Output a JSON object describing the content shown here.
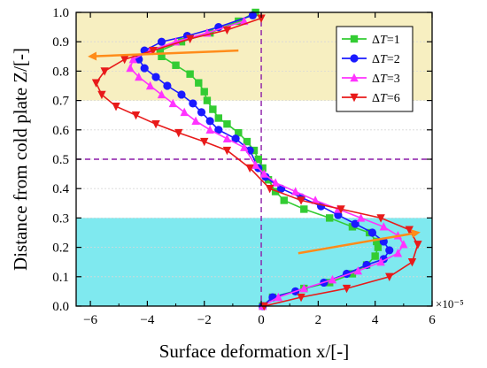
{
  "chart_data": {
    "type": "line",
    "xlabel": "Surface deformation x/[-]",
    "ylabel": "Distance from cold plate Z/[-]",
    "x_exponent_label": "×10⁻⁵",
    "xlim": [
      -6.5,
      6
    ],
    "ylim": [
      0,
      1.0
    ],
    "xticks": [
      -6,
      -4,
      -2,
      0,
      2,
      4,
      6
    ],
    "yticks": [
      0.0,
      0.1,
      0.2,
      0.3,
      0.4,
      0.5,
      0.6,
      0.7,
      0.8,
      0.9,
      1.0
    ],
    "xtick_labels": [
      "−6",
      "−4",
      "−2",
      "0",
      "2",
      "4",
      "6"
    ],
    "ytick_labels": [
      "0.0",
      "0.1",
      "0.2",
      "0.3",
      "0.4",
      "0.5",
      "0.6",
      "0.7",
      "0.8",
      "0.9",
      "1.0"
    ],
    "grid": false,
    "legend_position": "top-right",
    "bands": [
      {
        "y0": 0.7,
        "y1": 1.0,
        "color": "#f7efc1"
      },
      {
        "y0": 0.0,
        "y1": 0.3,
        "color": "#7fe9ef"
      }
    ],
    "reference_lines": [
      {
        "orientation": "vertical",
        "x": 0,
        "color": "#8b1aa8"
      },
      {
        "orientation": "horizontal",
        "y": 0.5,
        "color": "#8b1aa8"
      }
    ],
    "arrows": [
      {
        "from": [
          -0.8,
          0.87
        ],
        "to": [
          -6.0,
          0.85
        ],
        "color": "#ff8c1a"
      },
      {
        "from": [
          1.3,
          0.18
        ],
        "to": [
          5.5,
          0.25
        ],
        "color": "#ff8c1a"
      }
    ],
    "series": [
      {
        "name": "ΔT=1",
        "legend_prefix": "Δ",
        "legend_var": "T",
        "legend_suffix": "=1",
        "color": "#33cc33",
        "marker": "square",
        "x": [
          0.05,
          0.4,
          1.5,
          2.4,
          3.2,
          3.7,
          4.0,
          4.1,
          4.05,
          3.8,
          3.2,
          2.4,
          1.5,
          0.8,
          0.5,
          0.25,
          0.05,
          -0.1,
          -0.25,
          -0.5,
          -0.8,
          -1.2,
          -1.5,
          -1.7,
          -1.9,
          -2.0,
          -2.2,
          -2.5,
          -3.0,
          -3.5,
          -3.55,
          -2.8,
          -1.8,
          -0.8,
          -0.2
        ],
        "y": [
          0.0,
          0.03,
          0.06,
          0.08,
          0.11,
          0.14,
          0.17,
          0.2,
          0.22,
          0.25,
          0.27,
          0.3,
          0.33,
          0.36,
          0.39,
          0.43,
          0.47,
          0.5,
          0.53,
          0.56,
          0.59,
          0.62,
          0.64,
          0.67,
          0.7,
          0.73,
          0.76,
          0.79,
          0.82,
          0.85,
          0.87,
          0.9,
          0.93,
          0.97,
          1.0
        ]
      },
      {
        "name": "ΔT=2",
        "legend_prefix": "Δ",
        "legend_var": "T",
        "legend_suffix": "=2",
        "color": "#1a1aff",
        "marker": "circle",
        "x": [
          0.05,
          0.4,
          1.2,
          2.2,
          3.0,
          3.7,
          4.3,
          4.5,
          4.3,
          3.9,
          3.3,
          2.7,
          2.1,
          1.4,
          0.7,
          0.15,
          -0.1,
          -0.4,
          -0.9,
          -1.5,
          -1.8,
          -2.1,
          -2.4,
          -2.8,
          -3.3,
          -3.7,
          -4.1,
          -4.3,
          -4.1,
          -3.5,
          -2.6,
          -1.5,
          -0.3
        ],
        "y": [
          0.0,
          0.03,
          0.05,
          0.08,
          0.11,
          0.14,
          0.16,
          0.19,
          0.22,
          0.25,
          0.28,
          0.31,
          0.34,
          0.37,
          0.4,
          0.44,
          0.47,
          0.53,
          0.57,
          0.6,
          0.63,
          0.66,
          0.69,
          0.72,
          0.75,
          0.78,
          0.81,
          0.84,
          0.87,
          0.9,
          0.92,
          0.95,
          0.99
        ]
      },
      {
        "name": "ΔT=3",
        "legend_prefix": "Δ",
        "legend_var": "T",
        "legend_suffix": "=3",
        "color": "#ff33ff",
        "marker": "triangle",
        "x": [
          0.05,
          0.6,
          1.5,
          2.5,
          3.4,
          4.2,
          4.8,
          5.0,
          4.8,
          4.3,
          3.5,
          2.7,
          1.9,
          1.2,
          0.5,
          0.1,
          -0.2,
          -0.6,
          -1.2,
          -1.8,
          -2.3,
          -2.7,
          -3.1,
          -3.5,
          -3.9,
          -4.3,
          -4.6,
          -4.5,
          -3.9,
          -3.0,
          -1.9,
          -0.6
        ],
        "y": [
          0.0,
          0.03,
          0.06,
          0.09,
          0.12,
          0.15,
          0.18,
          0.21,
          0.24,
          0.27,
          0.3,
          0.33,
          0.36,
          0.39,
          0.42,
          0.45,
          0.48,
          0.54,
          0.57,
          0.6,
          0.63,
          0.66,
          0.69,
          0.72,
          0.75,
          0.78,
          0.81,
          0.84,
          0.87,
          0.9,
          0.93,
          0.97
        ]
      },
      {
        "name": "ΔT=6",
        "legend_prefix": "Δ",
        "legend_var": "T",
        "legend_suffix": "=6",
        "color": "#e81a1a",
        "marker": "triangle-down",
        "x": [
          0.1,
          1.4,
          3.0,
          4.5,
          5.3,
          5.5,
          5.2,
          4.2,
          2.8,
          1.4,
          0.3,
          -0.4,
          -1.2,
          -2.0,
          -2.9,
          -3.7,
          -4.4,
          -5.1,
          -5.6,
          -5.8,
          -5.5,
          -4.8,
          -3.8,
          -2.5,
          -1.2,
          0.0
        ],
        "y": [
          0.0,
          0.03,
          0.06,
          0.1,
          0.15,
          0.21,
          0.26,
          0.3,
          0.33,
          0.36,
          0.4,
          0.47,
          0.53,
          0.56,
          0.59,
          0.62,
          0.65,
          0.68,
          0.72,
          0.76,
          0.8,
          0.84,
          0.87,
          0.91,
          0.94,
          0.98
        ]
      }
    ]
  }
}
